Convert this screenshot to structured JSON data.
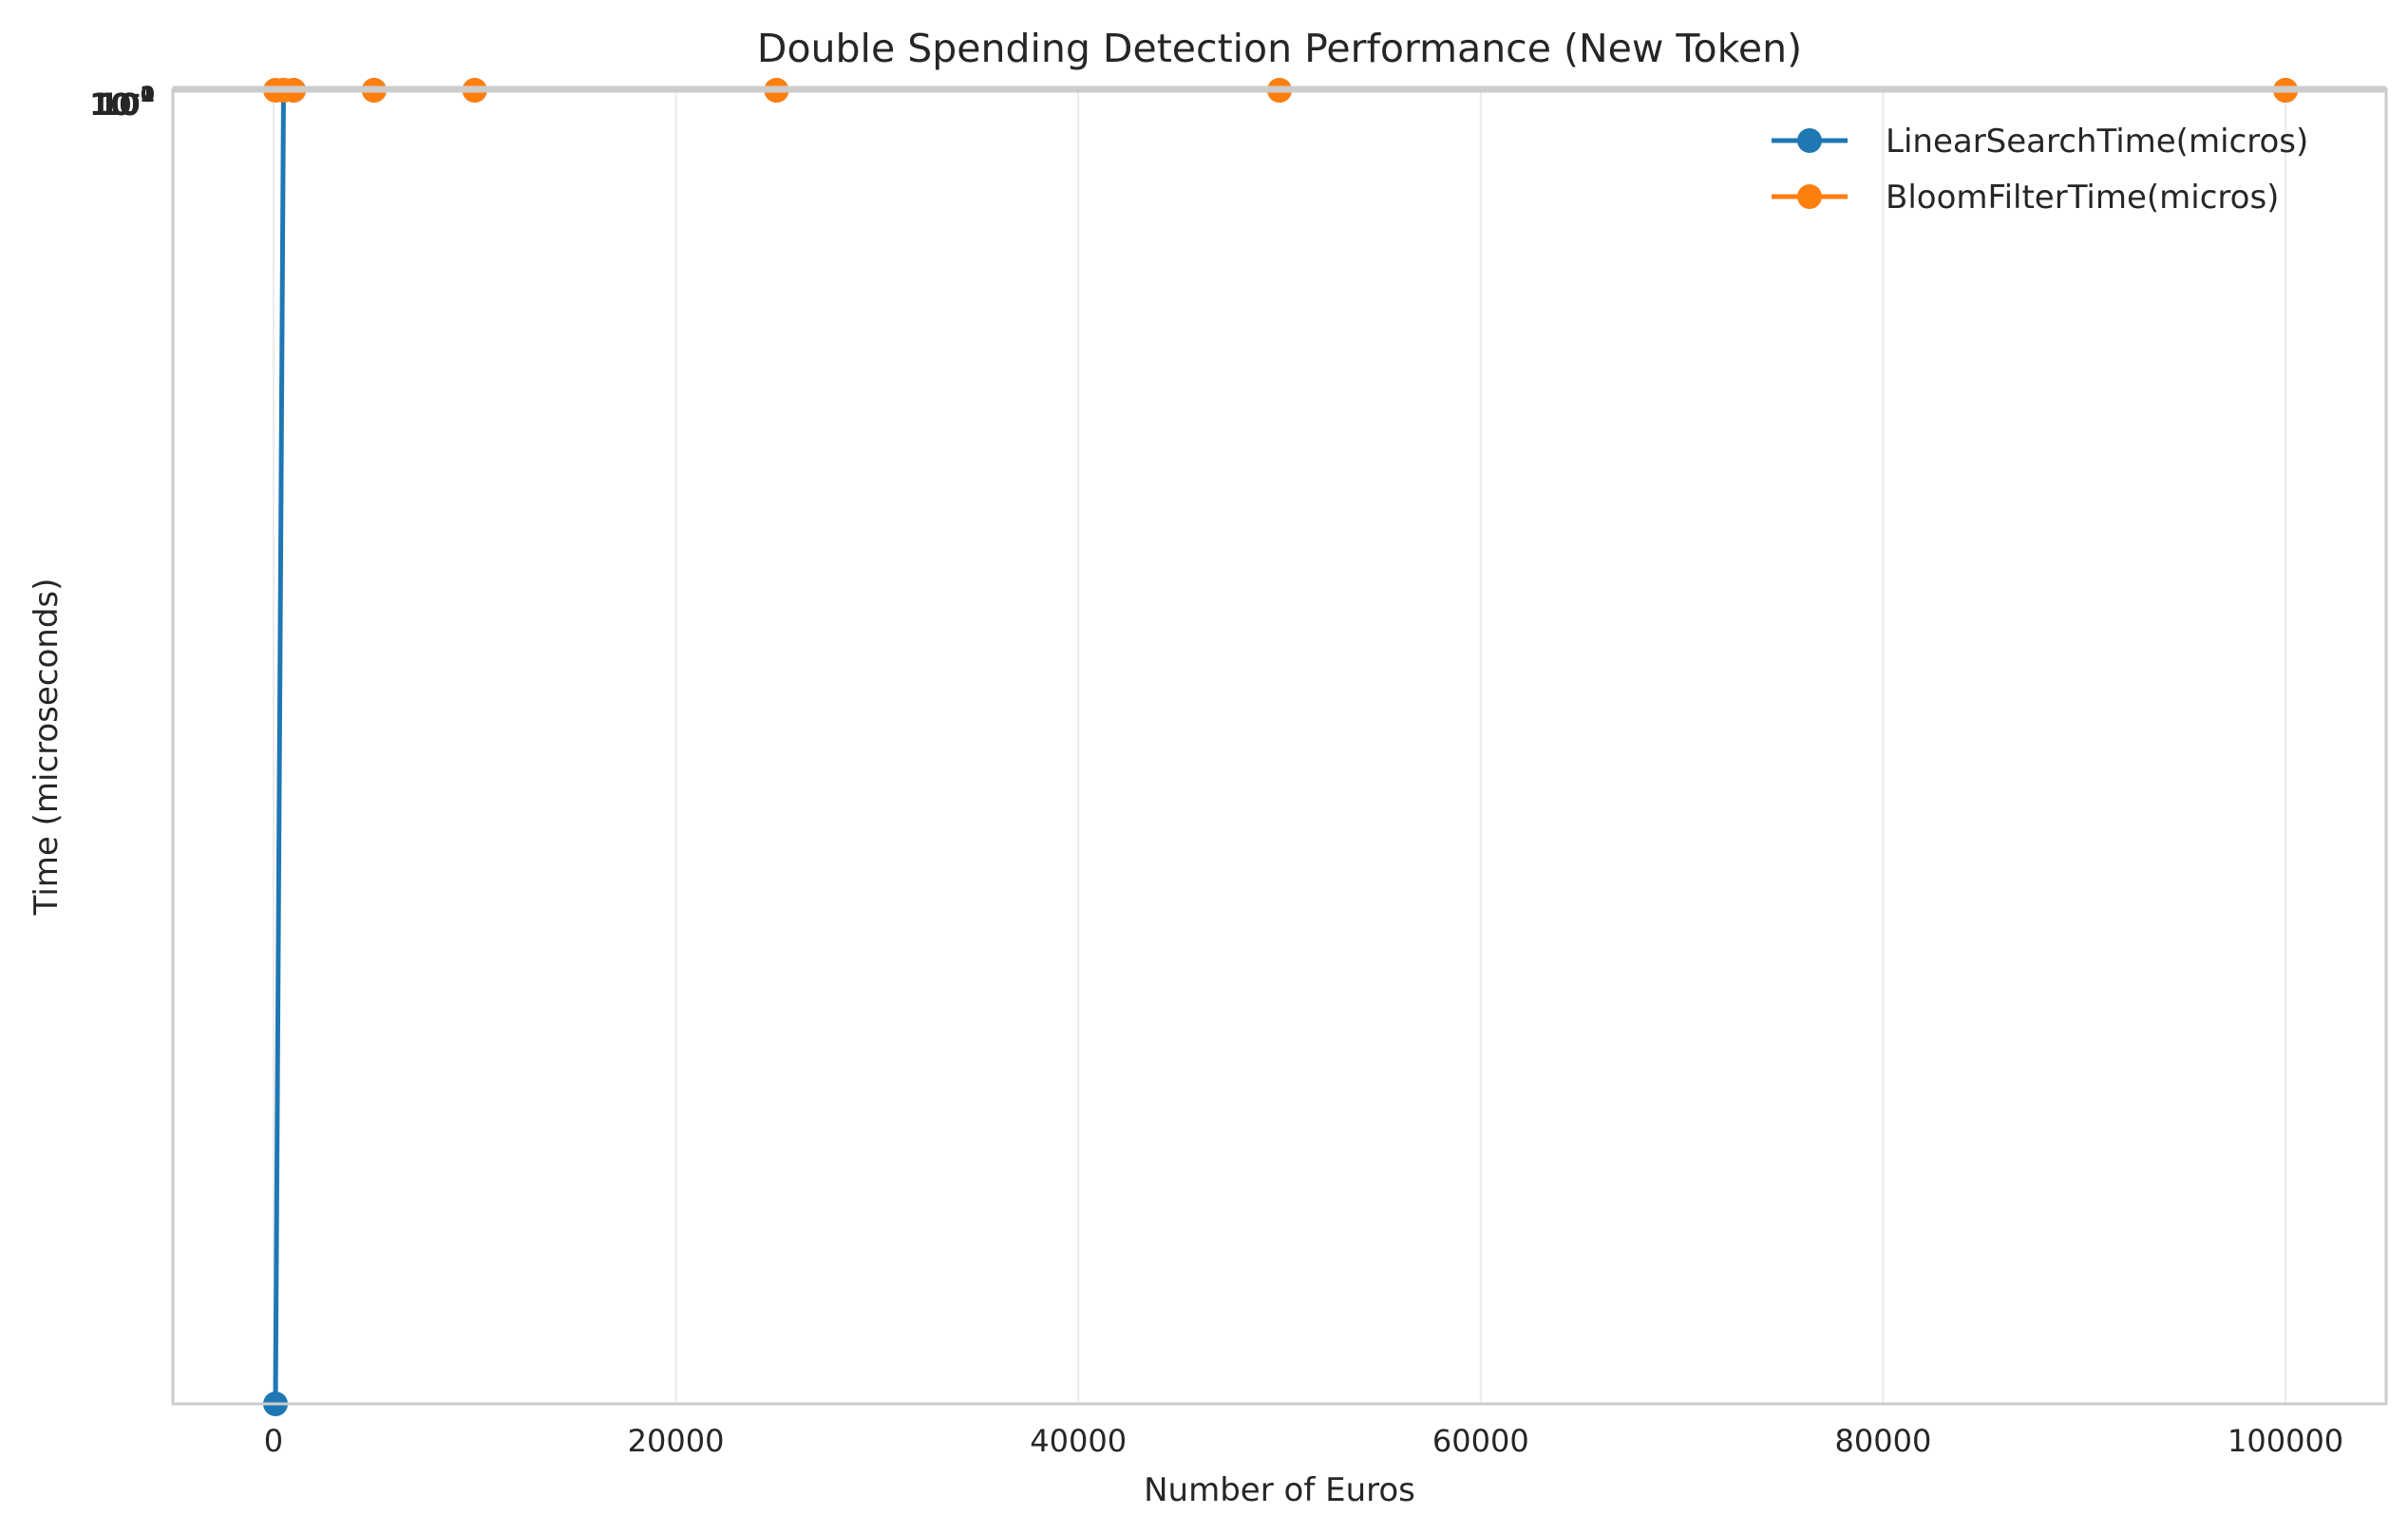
{
  "chart_data": {
    "type": "line",
    "title": "Double Spending Detection Performance (New Token)",
    "xlabel": "Number of Euros",
    "ylabel": "Time (microseconds)",
    "xlim": [
      -5000,
      105000
    ],
    "x_ticks": [
      0,
      20000,
      40000,
      60000,
      80000,
      100000
    ],
    "y_scale": "log",
    "y_tick_labels": [
      "10^-1",
      "10^0",
      "10^1",
      "10^2"
    ],
    "grid": true,
    "legend_position": "top-right",
    "series": [
      {
        "name": "LinearSearchTime(micros)",
        "color": "#1f77b4",
        "marker": "circle",
        "points": [
          {
            "x": 100,
            "y": "low"
          },
          {
            "x": 500,
            "y": "high"
          },
          {
            "x": 1000,
            "y": "high"
          },
          {
            "x": 5000,
            "y": "high"
          },
          {
            "x": 10000,
            "y": "high"
          },
          {
            "x": 25000,
            "y": "high"
          },
          {
            "x": 50000,
            "y": "high"
          },
          {
            "x": 100000,
            "y": "high"
          }
        ]
      },
      {
        "name": "BloomFilterTime(micros)",
        "color": "#ff7f0e",
        "marker": "circle",
        "points": [
          {
            "x": 100,
            "y": "high"
          },
          {
            "x": 500,
            "y": "high"
          },
          {
            "x": 1000,
            "y": "high"
          },
          {
            "x": 5000,
            "y": "high"
          },
          {
            "x": 10000,
            "y": "high"
          },
          {
            "x": 25000,
            "y": "high"
          },
          {
            "x": 50000,
            "y": "high"
          },
          {
            "x": 100000,
            "y": "high"
          }
        ]
      }
    ]
  }
}
